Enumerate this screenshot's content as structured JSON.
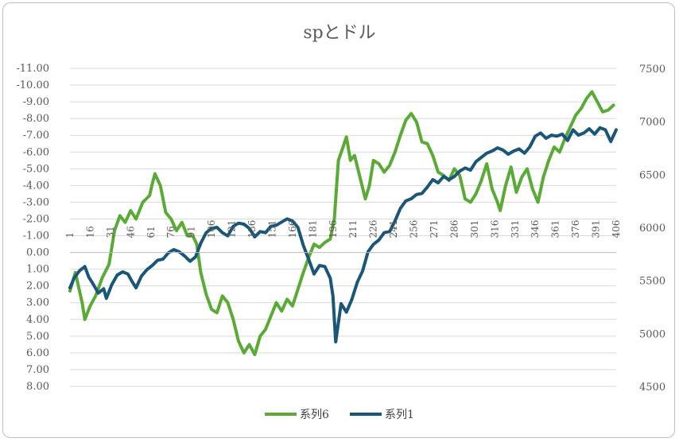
{
  "chart_data": {
    "type": "line",
    "title": "spとドル",
    "grid": true,
    "legend_position": "bottom",
    "y_left": {
      "ticks": [
        "-11.00",
        "-10.00",
        "-9.00",
        "-8.00",
        "-7.00",
        "-6.00",
        "-5.00",
        "-4.00",
        "-3.00",
        "-2.00",
        "-1.00",
        "0.00",
        "1.00",
        "2.00",
        "3.00",
        "4.00",
        "5.00",
        "6.00",
        "7.00",
        "8.00"
      ],
      "min": -11,
      "max": 8,
      "reversed": true
    },
    "y_right": {
      "ticks": [
        "7500",
        "7000",
        "6500",
        "6000",
        "5500",
        "5000",
        "4500"
      ],
      "min": 4500,
      "max": 7500
    },
    "x": {
      "min": 1,
      "max": 406,
      "tick_labels": [
        "1",
        "16",
        "31",
        "46",
        "61",
        "76",
        "91",
        "106",
        "121",
        "136",
        "151",
        "166",
        "181",
        "196",
        "211",
        "226",
        "241",
        "256",
        "271",
        "286",
        "301",
        "316",
        "331",
        "346",
        "361",
        "376",
        "391",
        "406"
      ]
    },
    "series": [
      {
        "name": "系列6",
        "axis": "left",
        "color": "#5aab36",
        "points": [
          [
            1,
            2.3
          ],
          [
            5,
            1.2
          ],
          [
            10,
            3.0
          ],
          [
            12,
            4.0
          ],
          [
            16,
            3.2
          ],
          [
            20,
            2.6
          ],
          [
            25,
            1.5
          ],
          [
            30,
            0.7
          ],
          [
            34,
            -1.3
          ],
          [
            38,
            -2.2
          ],
          [
            42,
            -1.8
          ],
          [
            46,
            -2.5
          ],
          [
            50,
            -2.0
          ],
          [
            55,
            -3.0
          ],
          [
            60,
            -3.4
          ],
          [
            62,
            -4.1
          ],
          [
            64,
            -4.7
          ],
          [
            68,
            -4.0
          ],
          [
            72,
            -2.4
          ],
          [
            76,
            -2.0
          ],
          [
            80,
            -1.3
          ],
          [
            84,
            -1.8
          ],
          [
            88,
            -1.0
          ],
          [
            92,
            -1.0
          ],
          [
            95,
            -0.5
          ],
          [
            98,
            1.2
          ],
          [
            102,
            2.5
          ],
          [
            106,
            3.4
          ],
          [
            110,
            3.6
          ],
          [
            114,
            2.6
          ],
          [
            118,
            3.0
          ],
          [
            122,
            4.0
          ],
          [
            126,
            5.3
          ],
          [
            130,
            6.0
          ],
          [
            134,
            5.5
          ],
          [
            138,
            6.1
          ],
          [
            142,
            5.0
          ],
          [
            146,
            4.6
          ],
          [
            150,
            3.8
          ],
          [
            154,
            3.0
          ],
          [
            158,
            3.5
          ],
          [
            162,
            2.8
          ],
          [
            166,
            3.2
          ],
          [
            170,
            2.2
          ],
          [
            174,
            1.2
          ],
          [
            178,
            0.3
          ],
          [
            182,
            -0.5
          ],
          [
            186,
            -0.3
          ],
          [
            190,
            -0.6
          ],
          [
            194,
            -0.8
          ],
          [
            197,
            -2.0
          ],
          [
            200,
            -5.5
          ],
          [
            203,
            -6.2
          ],
          [
            206,
            -6.9
          ],
          [
            209,
            -5.5
          ],
          [
            212,
            -5.8
          ],
          [
            216,
            -4.5
          ],
          [
            220,
            -3.2
          ],
          [
            223,
            -4.0
          ],
          [
            226,
            -5.5
          ],
          [
            230,
            -5.3
          ],
          [
            234,
            -4.8
          ],
          [
            238,
            -5.2
          ],
          [
            242,
            -6.0
          ],
          [
            246,
            -7.0
          ],
          [
            250,
            -7.9
          ],
          [
            254,
            -8.3
          ],
          [
            258,
            -7.8
          ],
          [
            262,
            -6.6
          ],
          [
            266,
            -6.5
          ],
          [
            270,
            -5.8
          ],
          [
            274,
            -4.8
          ],
          [
            278,
            -4.6
          ],
          [
            282,
            -4.3
          ],
          [
            286,
            -5.0
          ],
          [
            290,
            -4.6
          ],
          [
            294,
            -3.2
          ],
          [
            298,
            -3.0
          ],
          [
            302,
            -3.5
          ],
          [
            306,
            -4.3
          ],
          [
            310,
            -5.3
          ],
          [
            314,
            -3.8
          ],
          [
            318,
            -3.0
          ],
          [
            320,
            -2.5
          ],
          [
            324,
            -4.0
          ],
          [
            328,
            -5.1
          ],
          [
            332,
            -3.6
          ],
          [
            336,
            -4.5
          ],
          [
            340,
            -5.0
          ],
          [
            344,
            -3.8
          ],
          [
            348,
            -3.0
          ],
          [
            352,
            -4.5
          ],
          [
            356,
            -5.5
          ],
          [
            360,
            -6.3
          ],
          [
            364,
            -6.0
          ],
          [
            368,
            -6.8
          ],
          [
            372,
            -7.5
          ],
          [
            376,
            -8.2
          ],
          [
            380,
            -8.6
          ],
          [
            384,
            -9.2
          ],
          [
            388,
            -9.6
          ],
          [
            392,
            -9.0
          ],
          [
            396,
            -8.4
          ],
          [
            400,
            -8.5
          ],
          [
            404,
            -8.8
          ]
        ]
      },
      {
        "name": "系列1",
        "axis": "right",
        "color": "#1a557a",
        "points": [
          [
            1,
            5430
          ],
          [
            4,
            5520
          ],
          [
            8,
            5590
          ],
          [
            12,
            5630
          ],
          [
            15,
            5530
          ],
          [
            18,
            5470
          ],
          [
            22,
            5380
          ],
          [
            26,
            5420
          ],
          [
            28,
            5330
          ],
          [
            32,
            5460
          ],
          [
            36,
            5550
          ],
          [
            40,
            5580
          ],
          [
            44,
            5560
          ],
          [
            47,
            5490
          ],
          [
            50,
            5430
          ],
          [
            54,
            5540
          ],
          [
            58,
            5600
          ],
          [
            62,
            5640
          ],
          [
            66,
            5690
          ],
          [
            70,
            5700
          ],
          [
            74,
            5760
          ],
          [
            78,
            5790
          ],
          [
            82,
            5770
          ],
          [
            86,
            5730
          ],
          [
            90,
            5680
          ],
          [
            94,
            5720
          ],
          [
            98,
            5850
          ],
          [
            102,
            5950
          ],
          [
            106,
            5990
          ],
          [
            110,
            6000
          ],
          [
            114,
            5950
          ],
          [
            118,
            5920
          ],
          [
            122,
            6010
          ],
          [
            126,
            6040
          ],
          [
            130,
            6030
          ],
          [
            134,
            5990
          ],
          [
            138,
            5910
          ],
          [
            142,
            5960
          ],
          [
            146,
            5950
          ],
          [
            150,
            6010
          ],
          [
            154,
            6020
          ],
          [
            158,
            6050
          ],
          [
            162,
            6080
          ],
          [
            166,
            6060
          ],
          [
            170,
            6000
          ],
          [
            174,
            5830
          ],
          [
            178,
            5700
          ],
          [
            182,
            5560
          ],
          [
            186,
            5640
          ],
          [
            190,
            5630
          ],
          [
            194,
            5520
          ],
          [
            196,
            5350
          ],
          [
            198,
            4920
          ],
          [
            202,
            5280
          ],
          [
            206,
            5200
          ],
          [
            210,
            5320
          ],
          [
            214,
            5480
          ],
          [
            218,
            5590
          ],
          [
            222,
            5770
          ],
          [
            226,
            5840
          ],
          [
            230,
            5880
          ],
          [
            234,
            5950
          ],
          [
            238,
            5960
          ],
          [
            242,
            6060
          ],
          [
            246,
            6180
          ],
          [
            250,
            6250
          ],
          [
            254,
            6270
          ],
          [
            258,
            6310
          ],
          [
            262,
            6320
          ],
          [
            266,
            6380
          ],
          [
            270,
            6450
          ],
          [
            274,
            6420
          ],
          [
            278,
            6480
          ],
          [
            282,
            6450
          ],
          [
            286,
            6480
          ],
          [
            290,
            6530
          ],
          [
            294,
            6560
          ],
          [
            298,
            6540
          ],
          [
            302,
            6620
          ],
          [
            306,
            6660
          ],
          [
            310,
            6700
          ],
          [
            314,
            6720
          ],
          [
            318,
            6750
          ],
          [
            322,
            6730
          ],
          [
            326,
            6690
          ],
          [
            330,
            6720
          ],
          [
            334,
            6740
          ],
          [
            338,
            6700
          ],
          [
            342,
            6760
          ],
          [
            346,
            6860
          ],
          [
            350,
            6890
          ],
          [
            354,
            6840
          ],
          [
            358,
            6870
          ],
          [
            362,
            6860
          ],
          [
            366,
            6880
          ],
          [
            370,
            6820
          ],
          [
            374,
            6920
          ],
          [
            378,
            6870
          ],
          [
            382,
            6890
          ],
          [
            386,
            6930
          ],
          [
            390,
            6880
          ],
          [
            394,
            6940
          ],
          [
            398,
            6920
          ],
          [
            402,
            6810
          ],
          [
            406,
            6920
          ]
        ]
      }
    ]
  }
}
